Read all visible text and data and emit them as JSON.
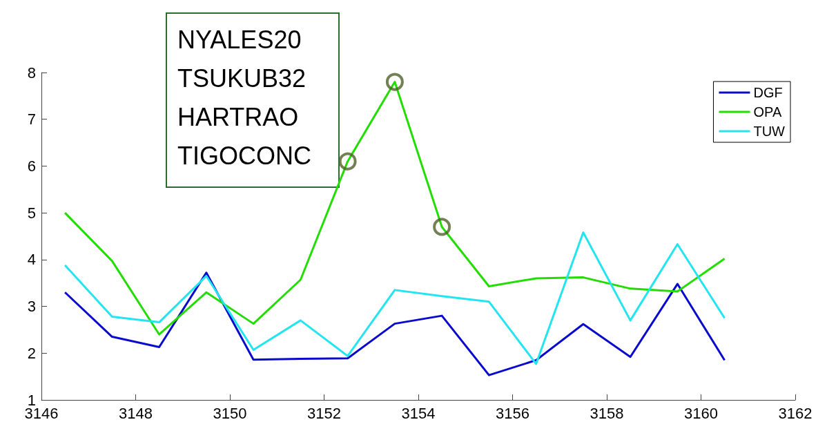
{
  "chart_data": {
    "type": "line",
    "x": [
      3146.5,
      3147.5,
      3148.5,
      3149.5,
      3150.5,
      3151.5,
      3152.5,
      3153.5,
      3154.5,
      3155.5,
      3156.5,
      3157.5,
      3158.5,
      3159.5,
      3160.5
    ],
    "series": [
      {
        "name": "DGF",
        "color": "#0a0acc",
        "values": [
          3.3,
          2.35,
          2.13,
          3.72,
          1.86,
          1.88,
          1.89,
          2.63,
          2.8,
          1.53,
          1.85,
          2.62,
          1.92,
          3.48,
          1.85
        ]
      },
      {
        "name": "OPA",
        "color": "#22dd00",
        "values": [
          5.0,
          3.97,
          2.4,
          3.3,
          2.63,
          3.57,
          6.1,
          7.8,
          4.7,
          3.43,
          3.6,
          3.62,
          3.38,
          3.32,
          4.02
        ]
      },
      {
        "name": "TUW",
        "color": "#22e5f0",
        "values": [
          3.88,
          2.78,
          2.66,
          3.65,
          2.07,
          2.7,
          1.94,
          3.35,
          3.22,
          3.1,
          1.77,
          4.58,
          2.7,
          4.33,
          2.75
        ]
      },
      {
        "type": "scatter",
        "marker": "circle",
        "color": "#4f6228",
        "x": [
          3152.5,
          3153.5,
          3154.5
        ],
        "values": [
          6.1,
          7.8,
          4.7
        ]
      }
    ],
    "xlim": [
      3146,
      3162
    ],
    "xticks": [
      3146,
      3148,
      3150,
      3152,
      3154,
      3156,
      3158,
      3160,
      3162
    ],
    "ylim": [
      1,
      8
    ],
    "yticks": [
      1,
      2,
      3,
      4,
      5,
      6,
      7,
      8
    ],
    "grid": false,
    "legend": "top right",
    "marker": "none",
    "line_style": "solid",
    "annotations": [
      "NYALES20",
      "TSUKUB32",
      "HARTRAO",
      "TIGOCONC"
    ]
  }
}
